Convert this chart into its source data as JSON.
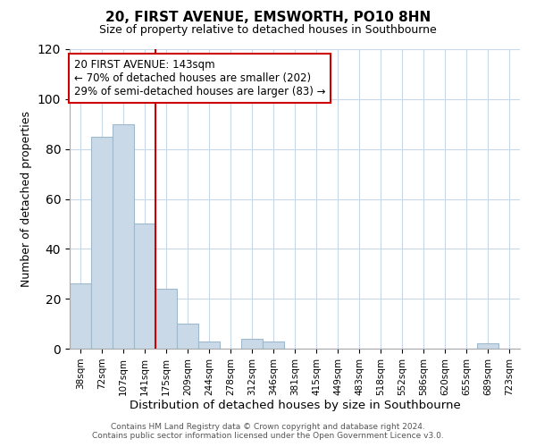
{
  "title": "20, FIRST AVENUE, EMSWORTH, PO10 8HN",
  "subtitle": "Size of property relative to detached houses in Southbourne",
  "xlabel": "Distribution of detached houses by size in Southbourne",
  "ylabel": "Number of detached properties",
  "bar_labels": [
    "38sqm",
    "72sqm",
    "107sqm",
    "141sqm",
    "175sqm",
    "209sqm",
    "244sqm",
    "278sqm",
    "312sqm",
    "346sqm",
    "381sqm",
    "415sqm",
    "449sqm",
    "483sqm",
    "518sqm",
    "552sqm",
    "586sqm",
    "620sqm",
    "655sqm",
    "689sqm",
    "723sqm"
  ],
  "bar_values": [
    26,
    85,
    90,
    50,
    24,
    10,
    3,
    0,
    4,
    3,
    0,
    0,
    0,
    0,
    0,
    0,
    0,
    0,
    0,
    2,
    0
  ],
  "bar_color": "#c9d9e8",
  "bar_edgecolor": "#a0b8cc",
  "property_line_x": 3.5,
  "property_line_color": "#cc0000",
  "annotation_text": "20 FIRST AVENUE: 143sqm\n← 70% of detached houses are smaller (202)\n29% of semi-detached houses are larger (83) →",
  "annotation_box_color": "#ffffff",
  "annotation_box_edgecolor": "#cc0000",
  "ylim": [
    0,
    120
  ],
  "yticks": [
    0,
    20,
    40,
    60,
    80,
    100,
    120
  ],
  "footer_line1": "Contains HM Land Registry data © Crown copyright and database right 2024.",
  "footer_line2": "Contains public sector information licensed under the Open Government Licence v3.0.",
  "background_color": "#ffffff",
  "grid_color": "#c8d8e8"
}
